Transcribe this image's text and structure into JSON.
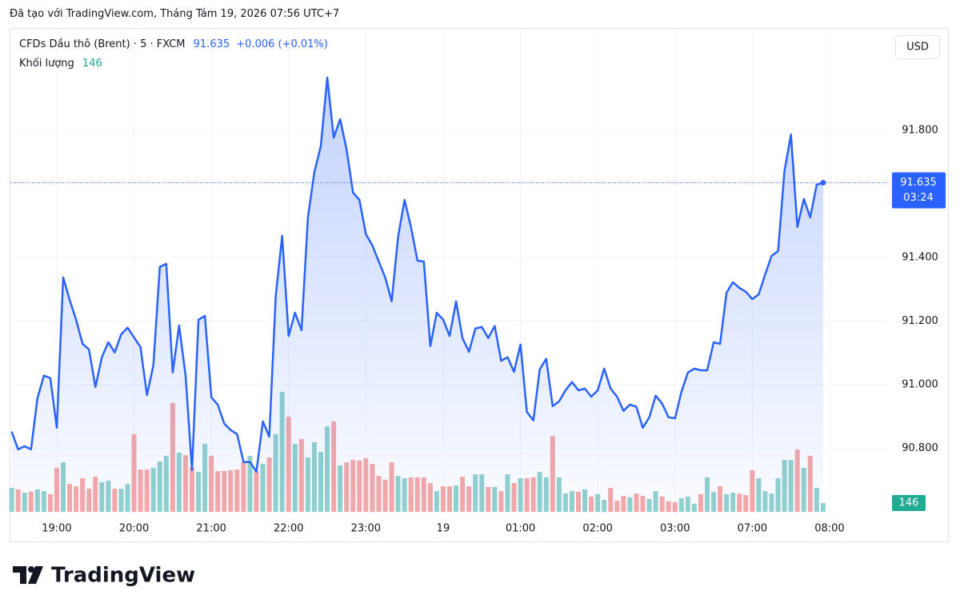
{
  "header": "Đã tạo với TradingView.com, Tháng Tám 19, 2026 07:56 UTC+7",
  "logo_text": "TradingView",
  "chart_data": {
    "type": "area",
    "symbol": "CFDs Dầu thô (Brent) · 5 · FXCM",
    "change": "+0.006 (+0.01%)",
    "currency": "USD",
    "countdown": "03:24",
    "volume_label": "Khối lượng",
    "categories": [
      null,
      null,
      null,
      null,
      null,
      null,
      null,
      "19:00",
      null,
      null,
      null,
      null,
      null,
      null,
      null,
      null,
      null,
      null,
      null,
      "20:00",
      null,
      null,
      null,
      null,
      null,
      null,
      null,
      null,
      null,
      null,
      null,
      "21:00",
      null,
      null,
      null,
      null,
      null,
      null,
      null,
      null,
      null,
      null,
      null,
      "22:00",
      null,
      null,
      null,
      null,
      null,
      null,
      null,
      null,
      null,
      null,
      null,
      "23:00",
      null,
      null,
      null,
      null,
      null,
      null,
      null,
      null,
      null,
      null,
      null,
      "19",
      null,
      null,
      null,
      null,
      null,
      null,
      null,
      null,
      null,
      null,
      null,
      "01:00",
      null,
      null,
      null,
      null,
      null,
      null,
      null,
      null,
      null,
      null,
      null,
      "02:00",
      null,
      null,
      null,
      null,
      null,
      null,
      null,
      null,
      null,
      null,
      null,
      "03:00",
      null,
      null,
      null,
      null,
      null,
      null,
      null,
      null,
      null,
      null,
      null,
      "07:00",
      null,
      null,
      null,
      null,
      null,
      null,
      null,
      null,
      null,
      null,
      null,
      "08:00"
    ],
    "series": [
      {
        "name": "CFDs Dầu thô (Brent)",
        "color": "#2962ff",
        "values": [
          90.852,
          90.796,
          90.806,
          90.796,
          90.957,
          91.028,
          91.02,
          90.864,
          91.337,
          91.267,
          91.204,
          91.128,
          91.111,
          90.992,
          91.086,
          91.133,
          91.101,
          91.158,
          91.179,
          91.148,
          91.118,
          90.967,
          91.06,
          91.37,
          91.38,
          91.038,
          91.186,
          91.028,
          90.731,
          91.204,
          91.216,
          90.96,
          90.937,
          90.877,
          90.857,
          90.844,
          90.756,
          90.756,
          90.726,
          90.884,
          90.836,
          91.279,
          91.468,
          91.153,
          91.226,
          91.171,
          91.526,
          91.669,
          91.75,
          91.966,
          91.777,
          91.835,
          91.74,
          91.604,
          91.581,
          91.473,
          91.438,
          91.387,
          91.337,
          91.262,
          91.465,
          91.581,
          91.496,
          91.39,
          91.387,
          91.121,
          91.226,
          91.204,
          91.153,
          91.262,
          91.146,
          91.103,
          91.176,
          91.181,
          91.146,
          91.184,
          91.075,
          91.086,
          91.04,
          91.126,
          90.914,
          90.887,
          91.048,
          91.081,
          90.932,
          90.947,
          90.982,
          91.008,
          90.982,
          90.987,
          90.962,
          90.982,
          91.05,
          90.987,
          90.962,
          90.917,
          90.937,
          90.93,
          90.864,
          90.897,
          90.965,
          90.94,
          90.897,
          90.894,
          90.977,
          91.038,
          91.05,
          91.045,
          91.045,
          91.133,
          91.128,
          91.289,
          91.322,
          91.304,
          91.292,
          91.269,
          91.284,
          91.347,
          91.405,
          91.42,
          91.672,
          91.787,
          91.496,
          91.584,
          91.526,
          91.629,
          91.635,
          null
        ]
      },
      {
        "name": "Khối lượng",
        "up_color": "#92d2cc",
        "down_color": "#f7a9a7",
        "values": [
          400,
          375,
          320,
          335,
          375,
          345,
          295,
          735,
          825,
          465,
          425,
          560,
          385,
          585,
          495,
          520,
          385,
          385,
          465,
          1295,
          705,
          705,
          735,
          840,
          935,
          1815,
          985,
          945,
          735,
          665,
          1135,
          935,
          680,
          680,
          695,
          705,
          825,
          935,
          680,
          800,
          905,
          1295,
          2000,
          1585,
          1135,
          1215,
          905,
          1160,
          1000,
          1425,
          1505,
          775,
          825,
          865,
          855,
          895,
          800,
          600,
          535,
          825,
          600,
          560,
          575,
          575,
          575,
          480,
          345,
          425,
          425,
          440,
          585,
          425,
          625,
          625,
          415,
          415,
          345,
          625,
          480,
          560,
          560,
          575,
          665,
          575,
          1265,
          575,
          305,
          345,
          335,
          375,
          255,
          295,
          200,
          400,
          185,
          265,
          240,
          305,
          265,
          215,
          345,
          255,
          175,
          160,
          225,
          255,
          135,
          295,
          575,
          335,
          425,
          295,
          320,
          305,
          280,
          695,
          560,
          345,
          305,
          560,
          865,
          865,
          1040,
          735,
          935,
          400,
          146,
          null
        ]
      }
    ],
    "ylim": [
      90.592,
      92.122
    ],
    "yticks": [
      {
        "value": 90.8,
        "label": "90.800"
      },
      {
        "value": 91.0,
        "label": "91.000"
      },
      {
        "value": 91.2,
        "label": "91.200"
      },
      {
        "value": 91.4,
        "label": "91.400"
      },
      {
        "value": 91.8,
        "label": "91.800"
      }
    ],
    "volume_ylim": [
      0,
      2400
    ],
    "grid": true
  }
}
